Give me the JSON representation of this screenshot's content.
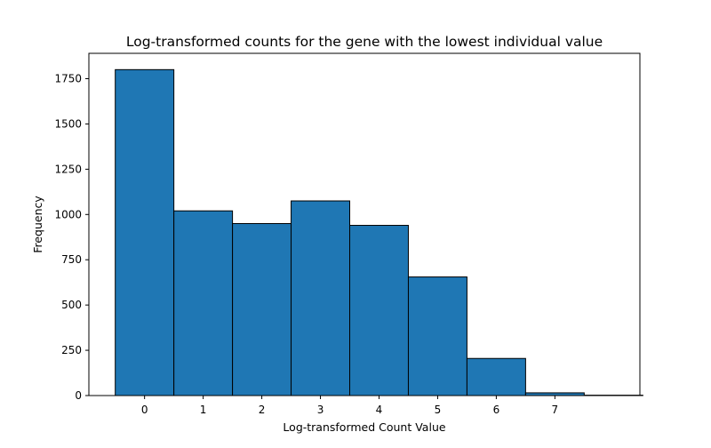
{
  "chart_data": {
    "type": "bar",
    "title": "Log-transformed counts for the gene with the lowest individual value",
    "xlabel": "Log-transformed Count Value",
    "ylabel": "Frequency",
    "categories": [
      "0",
      "1",
      "2",
      "3",
      "4",
      "5",
      "6",
      "7",
      ""
    ],
    "x_centers": [
      0,
      1,
      2,
      3,
      4,
      5,
      6,
      7,
      8
    ],
    "bin_width": 1,
    "values": [
      1800,
      1020,
      950,
      1075,
      940,
      655,
      205,
      15,
      2
    ],
    "xlim": [
      -0.95,
      8.45
    ],
    "ylim": [
      0,
      1890
    ],
    "x_ticks": [
      0,
      1,
      2,
      3,
      4,
      5,
      6,
      7
    ],
    "x_tick_labels": [
      "0",
      "1",
      "2",
      "3",
      "4",
      "5",
      "6",
      "7"
    ],
    "y_ticks": [
      0,
      250,
      500,
      750,
      1000,
      1250,
      1500,
      1750
    ],
    "y_tick_labels": [
      "0",
      "250",
      "500",
      "750",
      "1000",
      "1250",
      "1500",
      "1750"
    ],
    "grid": false,
    "legend": "none",
    "bar_color": "#1f77b4",
    "edge_color": "#000000"
  }
}
